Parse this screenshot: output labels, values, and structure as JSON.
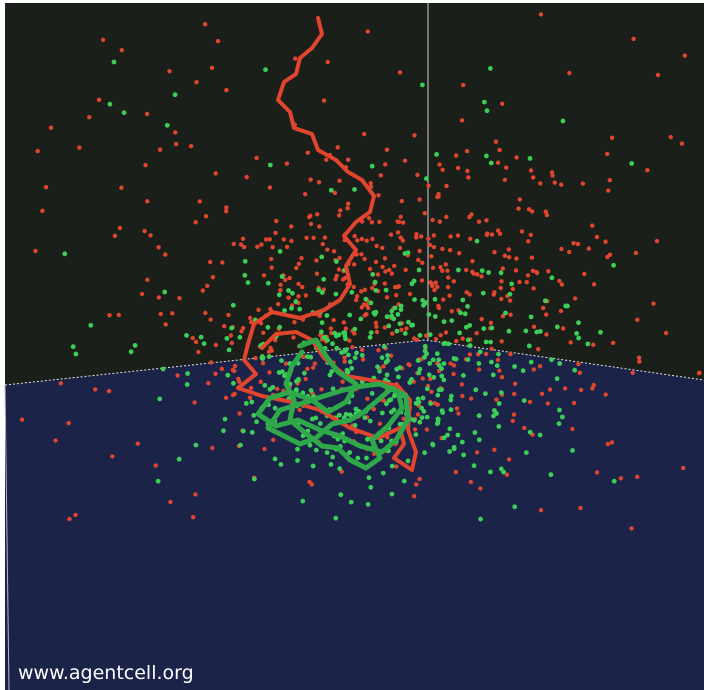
{
  "watermark": "www.agentcell.org"
}
